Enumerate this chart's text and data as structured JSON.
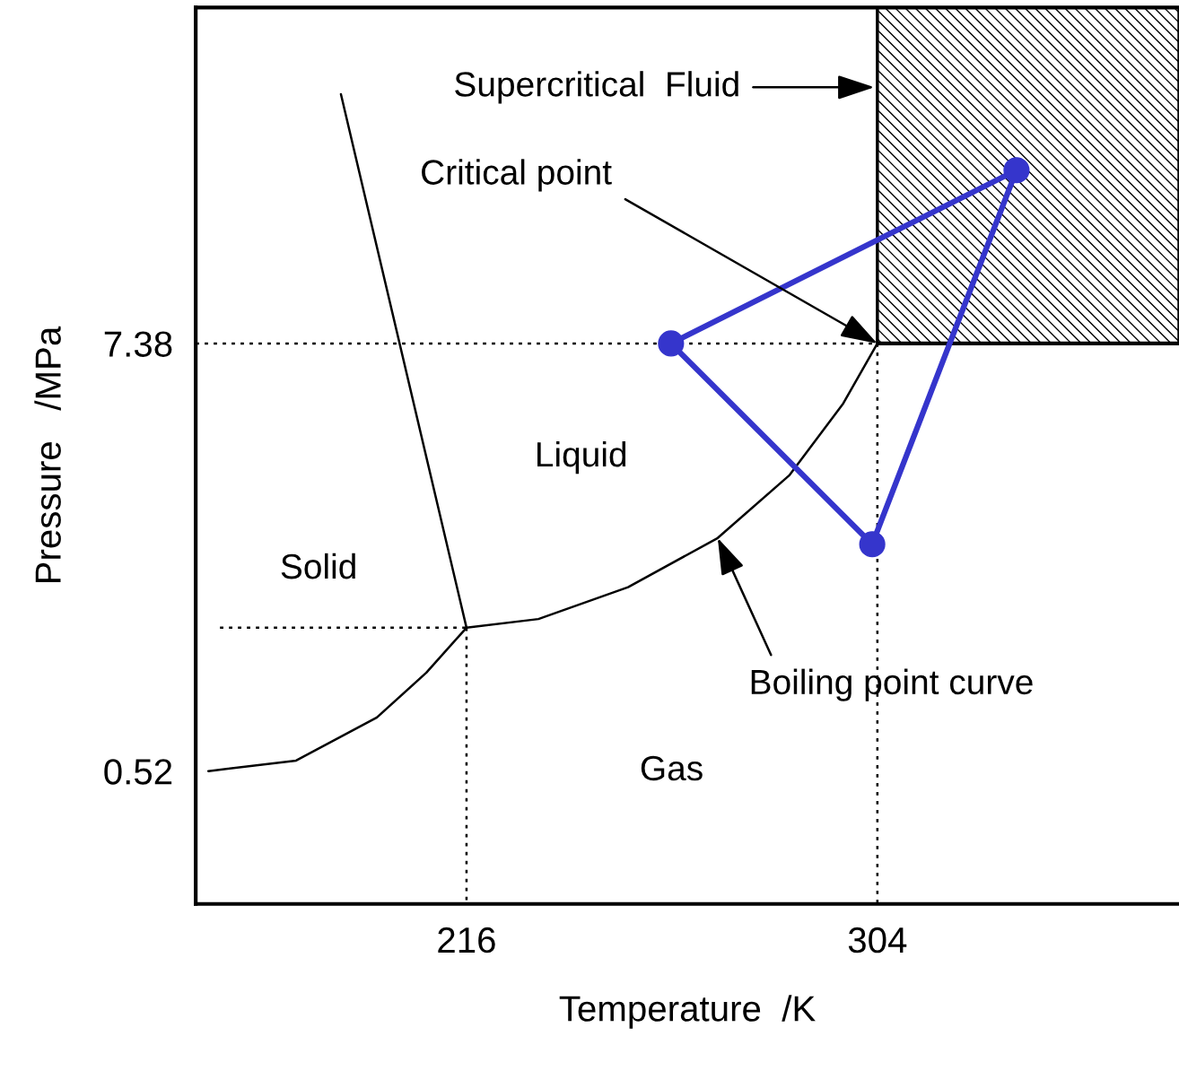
{
  "chart_data": {
    "type": "line",
    "xlabel": "Temperature  /K",
    "ylabel": "Pressure   /MPa",
    "xlim": [
      158,
      368.6
    ],
    "ylim": [
      -1.61,
      12.77
    ],
    "xticks": [
      216,
      304
    ],
    "yticks": [
      0.52,
      7.38
    ],
    "grid": false,
    "legend": false,
    "series": [
      {
        "color": "#000000",
        "line_style": "solid",
        "x": [
          304,
          368.6
        ],
        "values": [
          7.38,
          7.38
        ],
        "lower": [
          7.38,
          7.38
        ],
        "upper": [
          12.77,
          12.77
        ]
      },
      {
        "type": "line",
        "color": "#000000",
        "line_style": "dotted",
        "marker": "none",
        "x": [
          158,
          304
        ],
        "values": [
          7.38,
          7.38
        ]
      },
      {
        "type": "line",
        "color": "#000000",
        "line_style": "dotted",
        "marker": "none",
        "x": [
          304,
          304
        ],
        "values": [
          7.38,
          -1.61
        ]
      },
      {
        "type": "line",
        "color": "#000000",
        "line_style": "dotted",
        "marker": "none",
        "x": [
          216,
          216
        ],
        "values": [
          2.82,
          -1.61
        ]
      },
      {
        "type": "line",
        "color": "#000000",
        "line_style": "dotted",
        "marker": "none",
        "x": [
          163.2,
          216
        ],
        "values": [
          2.82,
          2.82
        ]
      },
      {
        "type": "line",
        "color": "#000000",
        "line_style": "solid",
        "marker": "none",
        "x": [
          160.7,
          179.5,
          196.8,
          207.4,
          216
        ],
        "values": [
          0.52,
          0.69,
          1.38,
          2.1,
          2.82
        ]
      },
      {
        "type": "line",
        "color": "#000000",
        "line_style": "solid",
        "marker": "none",
        "x": [
          216,
          189.1
        ],
        "values": [
          2.82,
          11.38
        ]
      },
      {
        "type": "line",
        "color": "#000000",
        "line_style": "solid",
        "x": [
          216,
          231.4,
          250.6,
          269.8,
          285.2,
          296.7,
          304
        ],
        "values": [
          2.82,
          2.96,
          3.47,
          4.26,
          5.27,
          6.42,
          7.38
        ]
      },
      {
        "color": "#3535cc",
        "line_style": "solid",
        "x": [
          259.8,
          333.8
        ],
        "values": [
          7.38,
          10.16
        ]
      },
      {
        "color": "#3535cc",
        "line_style": "solid",
        "x": [
          302.9,
          333.8
        ],
        "values": [
          4.16,
          10.16
        ]
      },
      {
        "color": "#3535cc",
        "line_style": "solid",
        "x": [
          259.8,
          302.9
        ],
        "values": [
          7.38,
          4.16
        ]
      },
      {
        "type": "scatter",
        "color": "#3535cc",
        "marker": "circle",
        "x": [
          259.8,
          333.8,
          302.9
        ],
        "values": [
          7.38,
          10.16,
          4.16
        ]
      }
    ],
    "annotations": [
      "Supercritical  Fluid",
      {
        "text": "Critical point",
        "x": 304,
        "y": 7.38
      },
      "Liquid",
      "Solid",
      {
        "text": "Boiling point curve",
        "x": 269.8,
        "y": 4.26
      },
      "Gas"
    ]
  }
}
